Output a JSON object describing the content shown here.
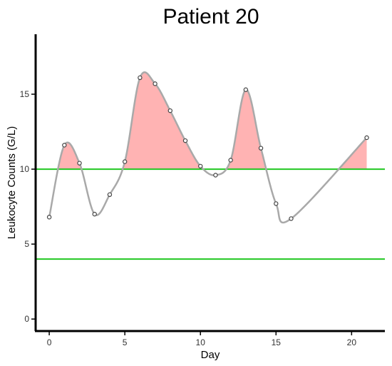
{
  "chart_data": {
    "type": "line",
    "title": "Patient 20",
    "xlabel": "Day",
    "ylabel": "Leukocyte Counts (G/L)",
    "xlim": [
      -0.9,
      22.2
    ],
    "ylim": [
      -0.8,
      19.0
    ],
    "x_ticks": [
      0,
      5,
      10,
      15,
      20
    ],
    "y_ticks": [
      0,
      5,
      10,
      15
    ],
    "grid": false,
    "legend": "none",
    "series": [
      {
        "x": [
          0,
          1,
          2,
          3,
          4,
          5,
          6,
          7,
          8,
          9,
          10,
          11,
          12,
          13,
          14,
          15,
          16,
          21
        ],
        "values": [
          6.8,
          11.6,
          10.4,
          7.0,
          8.3,
          10.5,
          16.1,
          15.7,
          13.9,
          11.9,
          10.2,
          9.6,
          10.6,
          15.3,
          11.4,
          7.7,
          6.7,
          12.1
        ]
      }
    ],
    "reference_lines": [
      {
        "y": 10
      },
      {
        "y": 4
      }
    ],
    "shade_above": 10,
    "colors": {
      "curve": "#a9a9a9",
      "shade": "#ffb3b3",
      "reference": "#22c722",
      "points": "#444444",
      "axis": "#000000"
    }
  }
}
